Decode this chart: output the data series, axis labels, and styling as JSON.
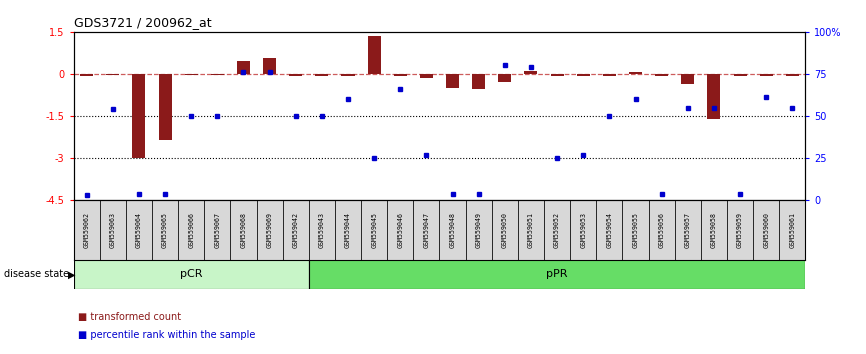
{
  "title": "GDS3721 / 200962_at",
  "samples": [
    "GSM559062",
    "GSM559063",
    "GSM559064",
    "GSM559065",
    "GSM559066",
    "GSM559067",
    "GSM559068",
    "GSM559069",
    "GSM559042",
    "GSM559043",
    "GSM559044",
    "GSM559045",
    "GSM559046",
    "GSM559047",
    "GSM559048",
    "GSM559049",
    "GSM559050",
    "GSM559051",
    "GSM559052",
    "GSM559053",
    "GSM559054",
    "GSM559055",
    "GSM559056",
    "GSM559057",
    "GSM559058",
    "GSM559059",
    "GSM559060",
    "GSM559061"
  ],
  "transformed_count": [
    -0.07,
    -0.05,
    -3.0,
    -2.35,
    -0.05,
    -0.05,
    0.45,
    0.55,
    -0.07,
    -0.07,
    -0.07,
    1.35,
    -0.07,
    -0.15,
    -0.5,
    -0.55,
    -0.28,
    0.12,
    -0.07,
    -0.07,
    -0.07,
    0.08,
    -0.07,
    -0.35,
    -1.6,
    -0.07,
    -0.07,
    -0.07
  ],
  "percentile_rank": [
    3.0,
    54.0,
    3.5,
    3.5,
    50.0,
    50.0,
    76.0,
    76.0,
    50.0,
    50.0,
    60.0,
    25.0,
    66.0,
    27.0,
    3.5,
    3.5,
    80.0,
    79.0,
    25.0,
    27.0,
    50.0,
    60.0,
    3.5,
    55.0,
    55.0,
    3.5,
    61.0,
    55.0
  ],
  "pCR_count": 9,
  "pPR_count": 19,
  "group_labels": [
    "pCR",
    "pPR"
  ],
  "pCR_color": "#c8f5c8",
  "pPR_color": "#66dd66",
  "ylim_left": [
    -4.5,
    1.5
  ],
  "ylim_right": [
    0,
    100
  ],
  "yticks_left": [
    1.5,
    0.0,
    -1.5,
    -3.0,
    -4.5
  ],
  "ytick_left_labels": [
    "1.5",
    "0",
    "-1.5",
    "-3",
    "-4.5"
  ],
  "yticks_right": [
    100,
    75,
    50,
    25,
    0
  ],
  "ytick_right_labels": [
    "100%",
    "75",
    "50",
    "25",
    "0"
  ],
  "hlines": [
    -1.5,
    -3.0
  ],
  "bar_color": "#8B1A1A",
  "dot_color": "#0000CD",
  "zero_line_color": "#cd5c5c",
  "background_color": "#ffffff",
  "legend_items": [
    "transformed count",
    "percentile rank within the sample"
  ]
}
